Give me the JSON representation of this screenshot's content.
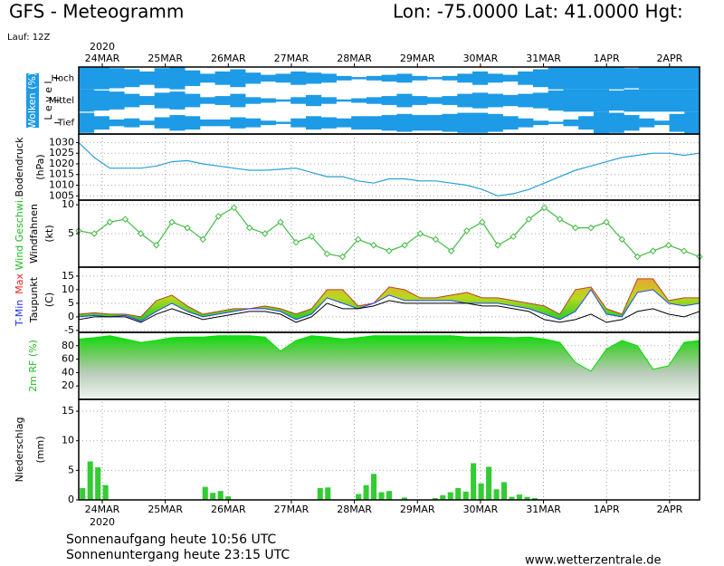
{
  "header": {
    "title": "GFS - Meteogramm",
    "location": "Lon: -75.0000 Lat: 41.0000 Hgt:",
    "run": "Lauf: 12Z"
  },
  "x_axis": {
    "year": "2020",
    "categories": [
      "24MAR",
      "25MAR",
      "26MAR",
      "27MAR",
      "28MAR",
      "29MAR",
      "30MAR",
      "31MAR",
      "1APR",
      "2APR"
    ]
  },
  "chart_data": [
    {
      "type": "cloud",
      "ylabel": [
        [
          {
            "text": "Wolken (%)",
            "color": "#ffffff"
          }
        ],
        [
          {
            "text": "L e v e l",
            "color": "#000000"
          }
        ]
      ],
      "ylim": [
        0,
        100
      ],
      "color": "#1e9be6",
      "series": [
        {
          "name": "Hoch",
          "values": [
            100,
            100,
            90,
            80,
            60,
            90,
            100,
            70,
            40,
            60,
            80,
            50,
            30,
            40,
            60,
            50,
            40,
            20,
            10,
            20,
            30,
            40,
            20,
            10,
            20,
            40,
            60,
            40,
            30,
            60,
            80,
            100,
            100,
            100,
            100,
            100,
            90,
            100,
            100,
            100,
            100
          ]
        },
        {
          "name": "Mittel",
          "values": [
            100,
            90,
            80,
            60,
            40,
            70,
            80,
            60,
            30,
            40,
            60,
            30,
            20,
            10,
            30,
            50,
            30,
            10,
            20,
            30,
            40,
            60,
            40,
            30,
            40,
            60,
            70,
            60,
            50,
            60,
            70,
            90,
            100,
            100,
            100,
            90,
            100,
            100,
            100,
            100,
            100
          ]
        },
        {
          "name": "Tief",
          "values": [
            90,
            60,
            30,
            40,
            20,
            50,
            70,
            60,
            30,
            30,
            50,
            40,
            20,
            10,
            40,
            60,
            50,
            40,
            60,
            60,
            70,
            80,
            70,
            70,
            80,
            90,
            90,
            80,
            60,
            40,
            20,
            10,
            30,
            60,
            100,
            90,
            70,
            40,
            20,
            80,
            100
          ]
        }
      ]
    },
    {
      "type": "line",
      "ylabel": [
        [
          {
            "text": "Bodendruck",
            "color": "#000000"
          }
        ],
        [
          {
            "text": "(hPa)",
            "color": "#000000"
          }
        ]
      ],
      "ylim": [
        1003,
        1034
      ],
      "yticks": [
        1005,
        1010,
        1015,
        1020,
        1025,
        1030
      ],
      "grid": true,
      "series": [
        {
          "color": "#2a9fd6",
          "values": [
            1030,
            1023,
            1018,
            1018,
            1018,
            1019,
            1021,
            1021.5,
            1020,
            1019,
            1018,
            1017,
            1017,
            1017.5,
            1018,
            1016,
            1014,
            1014,
            1012,
            1011,
            1013,
            1013,
            1012,
            1012,
            1011,
            1010,
            1008,
            1005,
            1006,
            1008,
            1011,
            1014,
            1017,
            1019,
            1021,
            1023,
            1024,
            1025,
            1025,
            1024,
            1025
          ]
        }
      ]
    },
    {
      "type": "line",
      "ylabel": [
        [
          {
            "text": "Wind Geschwi.",
            "color": "#22bb22"
          }
        ],
        [
          {
            "text": "Windfahnen",
            "color": "#000000"
          }
        ],
        [
          {
            "text": "(kt)",
            "color": "#000000"
          }
        ]
      ],
      "ylim": [
        -0.8,
        10.8
      ],
      "yticks": [
        5,
        10
      ],
      "grid": true,
      "series": [
        {
          "color": "#44bb44",
          "marker": "diamond",
          "values": [
            5.5,
            5,
            7,
            7.5,
            5,
            3,
            7,
            6,
            4,
            8,
            9.5,
            6,
            5,
            7,
            3.5,
            4.5,
            1.5,
            1,
            4,
            3,
            2,
            3,
            5,
            4,
            2,
            5.5,
            7,
            3,
            4.5,
            7.5,
            9.5,
            7.5,
            6,
            6,
            7,
            4,
            1,
            2,
            3,
            2,
            1
          ]
        }
      ]
    },
    {
      "type": "band",
      "ylabel": [
        [
          {
            "text": "T-Min",
            "color": "#2233ee"
          },
          {
            "text": "Max",
            "color": "#ee2222"
          }
        ],
        [
          {
            "text": "Taupunkt",
            "color": "#000000"
          }
        ],
        [
          {
            "text": "(C)",
            "color": "#000000"
          }
        ]
      ],
      "ylim": [
        -5.7,
        18.3
      ],
      "yticks": [
        -5,
        0,
        5,
        10,
        15
      ],
      "grid": true,
      "series": [
        {
          "name": "Max",
          "color": "#c04020",
          "values": [
            1,
            1.5,
            1,
            1,
            0,
            6,
            8,
            4,
            1,
            2,
            3,
            3,
            4,
            3,
            1,
            3,
            10,
            10,
            4,
            5,
            11,
            10,
            7,
            7,
            8,
            9,
            7,
            7,
            6,
            5,
            4,
            1,
            10,
            11,
            3,
            1,
            14,
            14,
            6,
            7,
            7
          ]
        },
        {
          "name": "T-Min",
          "color": "#2244ff",
          "values": [
            0,
            0.5,
            0,
            0.5,
            -1.5,
            2,
            5,
            2,
            0,
            1,
            2,
            3,
            3,
            2,
            -1,
            1,
            7,
            5,
            3,
            5,
            8,
            6,
            6,
            6,
            6,
            5,
            5,
            5,
            4,
            3,
            1,
            -1,
            2,
            10,
            1,
            0,
            9,
            10,
            5,
            4,
            5
          ]
        },
        {
          "name": "Taupunkt",
          "color": "#000000",
          "values": [
            -1,
            0,
            0,
            0,
            -2,
            1,
            3,
            1,
            -1,
            0,
            1,
            2,
            2,
            1,
            -2,
            0,
            5,
            3,
            3,
            4,
            6,
            5,
            5,
            5,
            5,
            5,
            4,
            4,
            3,
            2,
            -1,
            -2,
            -1,
            1,
            -2,
            -1,
            2,
            3,
            1,
            0,
            2
          ]
        }
      ]
    },
    {
      "type": "area",
      "ylabel": [
        [
          {
            "text": "2m RF (%)",
            "color": "#22bb22"
          }
        ]
      ],
      "ylim": [
        0,
        100
      ],
      "yticks": [
        20,
        40,
        60,
        80
      ],
      "grid": true,
      "series": [
        {
          "color": "#00dd00",
          "values": [
            90,
            92,
            95,
            90,
            85,
            88,
            92,
            93,
            93,
            95,
            95,
            95,
            93,
            72,
            88,
            95,
            93,
            90,
            92,
            95,
            95,
            95,
            95,
            95,
            95,
            93,
            93,
            93,
            92,
            93,
            90,
            85,
            55,
            42,
            75,
            88,
            80,
            45,
            50,
            85,
            88
          ]
        }
      ]
    },
    {
      "type": "bar",
      "ylabel": [
        [
          {
            "text": "Niederschlag",
            "color": "#000000"
          }
        ],
        [
          {
            "text": "(mm)",
            "color": "#000000"
          }
        ]
      ],
      "ylim": [
        0,
        17
      ],
      "yticks": [
        0,
        5,
        10,
        15
      ],
      "grid": true,
      "series": [
        {
          "color": "#33cc33",
          "values": [
            2,
            6.5,
            5.5,
            2.5,
            0,
            0,
            0,
            0,
            0,
            0,
            0,
            0,
            0,
            0,
            0,
            0,
            2.2,
            1.2,
            1.5,
            0.6,
            0,
            0,
            0,
            0,
            0,
            0,
            0,
            0,
            0,
            0,
            0,
            2,
            2.1,
            0,
            0,
            0,
            1,
            2.5,
            4.4,
            1.3,
            1.5,
            0,
            0.4,
            0,
            0,
            0,
            0.3,
            0.8,
            1.3,
            2,
            1.4,
            6.2,
            2.8,
            5.6,
            1.8,
            3,
            0.5,
            0.9,
            0.5,
            0.3,
            0,
            0,
            0,
            0,
            0,
            0,
            0,
            0,
            0,
            0,
            0,
            0,
            0,
            0,
            0,
            0,
            0,
            0,
            0,
            0,
            0
          ]
        }
      ]
    }
  ],
  "footer": {
    "sunrise": "Sonnenaufgang heute 10:56 UTC",
    "sunset": "Sonnenuntergang heute 23:15 UTC",
    "site": "www.wetterzentrale.de"
  }
}
